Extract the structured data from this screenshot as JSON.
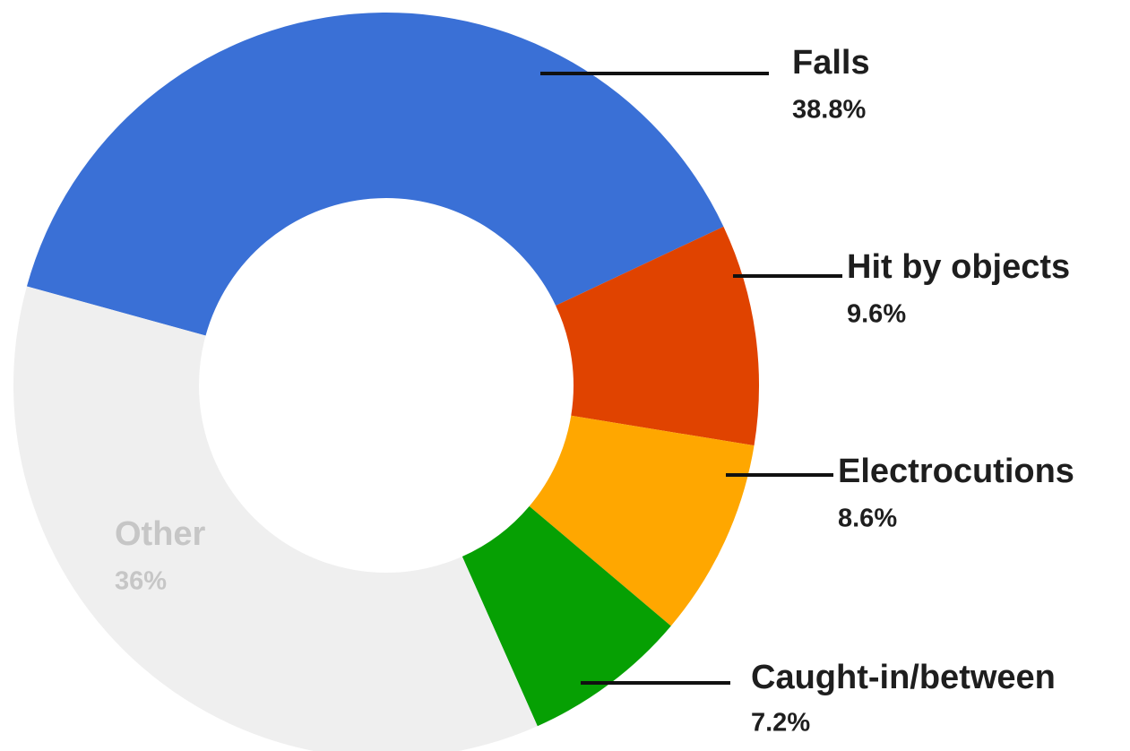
{
  "chart_data": {
    "type": "donut",
    "categories": [
      "Falls",
      "Hit by objects",
      "Electrocutions",
      "Caught-in/between",
      "Other"
    ],
    "values": [
      38.8,
      9.6,
      8.6,
      7.2,
      36
    ],
    "value_labels": [
      "38.8%",
      "9.6%",
      "8.6%",
      "7.2%",
      "36%"
    ],
    "colors": [
      "#3a70d6",
      "#e04300",
      "#ffa700",
      "#06a003",
      "#efefef"
    ]
  }
}
